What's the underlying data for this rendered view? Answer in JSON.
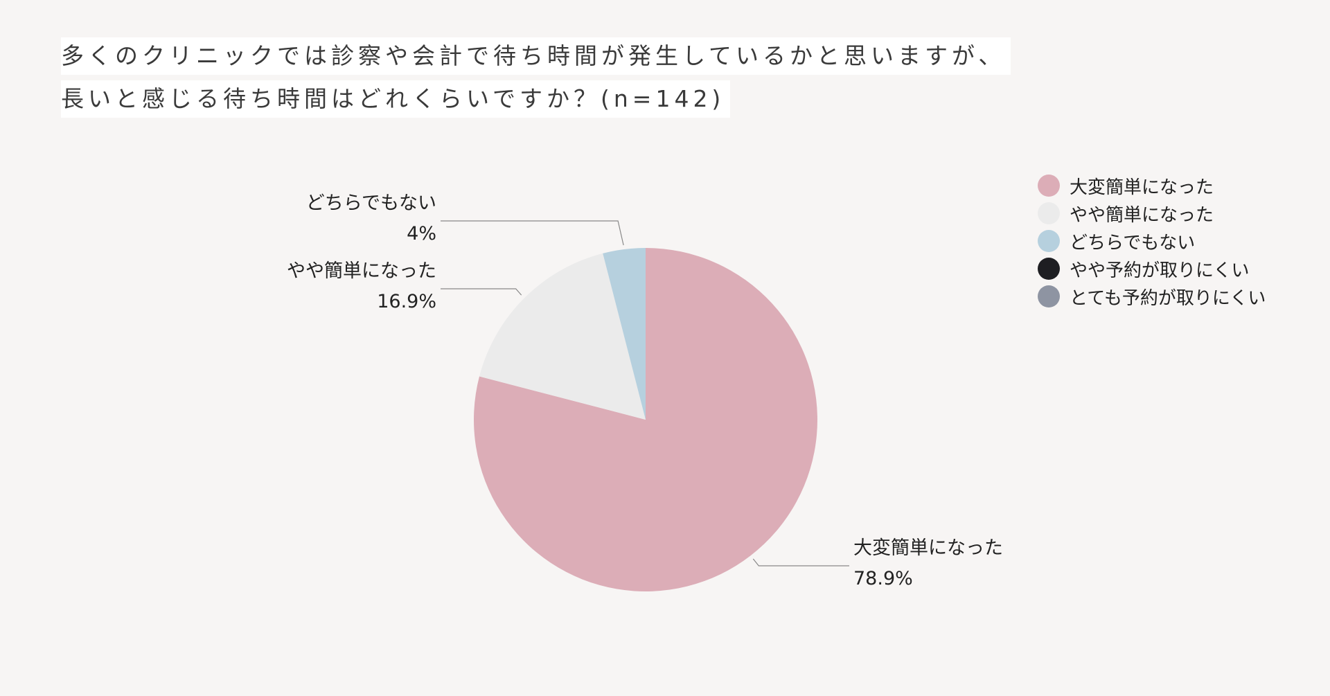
{
  "header": {
    "title_line1": "多くのクリニックでは診察や会計で待ち時間が発生しているかと思いますが、",
    "title_line2": "長いと感じる待ち時間はどれくらいですか？(n=142)"
  },
  "chart_data": {
    "type": "pie",
    "title": "多くのクリニックでは診察や会計で待ち時間が発生しているかと思いますが、長いと感じる待ち時間はどれくらいですか？(n=142)",
    "legend_position": "top-right",
    "slices": [
      {
        "label": "大変簡単になった",
        "value": 78.9,
        "display": "78.9%",
        "color": "#dcadb7"
      },
      {
        "label": "やや簡単になった",
        "value": 16.9,
        "display": "16.9%",
        "color": "#ebebeb"
      },
      {
        "label": "どちらでもない",
        "value": 4,
        "display": "4%",
        "color": "#b6d0de"
      },
      {
        "label": "やや予約が取りにくい",
        "value": 0,
        "display": "",
        "color": "#1e1e22"
      },
      {
        "label": "とても予約が取りにくい",
        "value": 0,
        "display": "",
        "color": "#8e94a2"
      }
    ]
  }
}
